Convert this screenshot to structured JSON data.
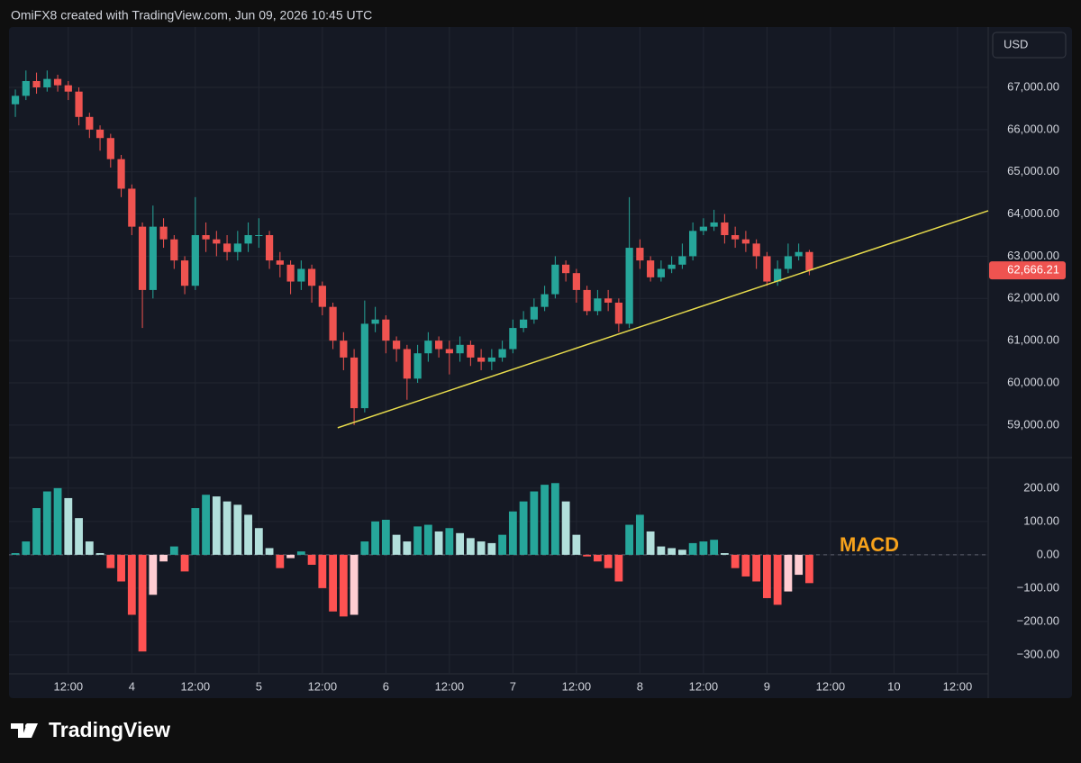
{
  "header": {
    "credit": "OmiFX8 created with TradingView.com, Jun 09, 2026 10:45 UTC",
    "currency": "USD",
    "brand": "TradingView"
  },
  "chart_data": [
    {
      "type": "candlestick",
      "x": [
        2,
        4,
        6,
        8,
        10,
        12,
        14,
        16,
        18,
        20,
        22,
        24,
        26,
        28,
        30,
        32,
        34,
        36,
        38,
        40,
        42,
        44,
        46,
        48,
        50,
        52,
        54,
        56,
        58,
        60,
        62,
        64,
        66,
        68,
        70,
        72,
        74,
        76,
        78,
        80,
        82,
        84,
        86,
        88,
        90,
        92,
        94,
        96,
        98,
        100,
        102,
        104,
        106,
        108,
        110,
        112,
        114,
        116,
        118,
        120,
        122,
        124,
        126,
        128,
        130,
        132,
        134,
        136,
        138,
        140,
        142,
        144,
        146,
        148,
        150,
        152
      ],
      "open": [
        66600,
        66800,
        67150,
        67000,
        67200,
        67050,
        66900,
        66300,
        66000,
        65800,
        65300,
        64600,
        63700,
        62200,
        63700,
        63400,
        62900,
        62300,
        63500,
        63400,
        63300,
        63100,
        63300,
        63500,
        63500,
        62900,
        62800,
        62400,
        62700,
        62300,
        61800,
        61000,
        60600,
        59400,
        61400,
        61500,
        61000,
        60800,
        60100,
        60700,
        61000,
        60800,
        60700,
        60900,
        60600,
        60500,
        60600,
        60800,
        61300,
        61500,
        61800,
        62100,
        62800,
        62600,
        62200,
        61700,
        62000,
        61900,
        61400,
        63200,
        62900,
        62500,
        62700,
        62800,
        63000,
        63600,
        63700,
        63800,
        63500,
        63400,
        63300,
        63000,
        62400,
        62700,
        63000,
        63100
      ],
      "high": [
        66950,
        67400,
        67350,
        67400,
        67300,
        67150,
        67000,
        66400,
        66100,
        65900,
        65400,
        64700,
        63800,
        64200,
        63900,
        63500,
        63000,
        64400,
        63800,
        63600,
        63500,
        63600,
        63800,
        63900,
        63600,
        63100,
        62900,
        62900,
        62800,
        62400,
        61900,
        61200,
        60800,
        61950,
        61800,
        61600,
        61100,
        60900,
        60900,
        61200,
        61100,
        61000,
        61100,
        61000,
        60800,
        60800,
        61000,
        61500,
        61700,
        62000,
        62300,
        63000,
        62900,
        62700,
        62300,
        62200,
        62200,
        62000,
        64400,
        63400,
        63000,
        62900,
        63000,
        63300,
        63800,
        63900,
        64100,
        64000,
        63700,
        63600,
        63400,
        63100,
        62900,
        63300,
        63300,
        63150
      ],
      "low": [
        66300,
        66700,
        66850,
        66900,
        66900,
        66700,
        66100,
        65800,
        65500,
        65100,
        64400,
        63500,
        61300,
        62000,
        63200,
        62700,
        62100,
        62200,
        63100,
        63000,
        62900,
        62900,
        63100,
        63200,
        62700,
        62500,
        62100,
        62200,
        61900,
        61600,
        60800,
        60300,
        59000,
        59300,
        61200,
        60700,
        60500,
        59600,
        60000,
        60500,
        60600,
        60200,
        60500,
        60400,
        60300,
        60300,
        60500,
        60700,
        61200,
        61400,
        61700,
        62000,
        62400,
        61900,
        61600,
        61600,
        61700,
        61200,
        61300,
        62700,
        62400,
        62400,
        62600,
        62700,
        62900,
        63500,
        63600,
        63300,
        63200,
        63100,
        62700,
        62300,
        62300,
        62600,
        62900,
        62550
      ],
      "close": [
        66800,
        67150,
        67000,
        67200,
        67050,
        66900,
        66300,
        66000,
        65800,
        65300,
        64600,
        63700,
        62200,
        63700,
        63400,
        62900,
        62300,
        63500,
        63400,
        63300,
        63100,
        63300,
        63500,
        63500,
        62900,
        62800,
        62400,
        62700,
        62300,
        61800,
        61000,
        60600,
        59400,
        61400,
        61500,
        61000,
        60800,
        60100,
        60700,
        61000,
        60800,
        60700,
        60900,
        60600,
        60500,
        60600,
        60800,
        61300,
        61500,
        61800,
        62100,
        62800,
        62600,
        62200,
        61700,
        62000,
        61900,
        61400,
        63200,
        62900,
        62500,
        62700,
        62800,
        63000,
        63600,
        63700,
        63800,
        63500,
        63400,
        63300,
        63000,
        62400,
        62700,
        63000,
        63100,
        62666.21
      ],
      "up_color": "#26a69a",
      "down_color": "#ef5350",
      "xlim": [
        0.8,
        185.8
      ],
      "ylim": [
        58250,
        68430
      ],
      "yticks": [
        {
          "value": 59000,
          "label": "59,000.00"
        },
        {
          "value": 60000,
          "label": "60,000.00"
        },
        {
          "value": 61000,
          "label": "61,000.00"
        },
        {
          "value": 62000,
          "label": "62,000.00"
        },
        {
          "value": 63000,
          "label": "63,000.00"
        },
        {
          "value": 64000,
          "label": "64,000.00"
        },
        {
          "value": 65000,
          "label": "65,000.00"
        },
        {
          "value": 66000,
          "label": "66,000.00"
        },
        {
          "value": 67000,
          "label": "67,000.00"
        }
      ],
      "last_price": {
        "value": 62666.21,
        "label": "62,666.21"
      },
      "trendline": {
        "x": [
          62.9,
          185.8
        ],
        "y": [
          58936,
          64077
        ],
        "color": "#e8dc4c"
      },
      "grid": true
    },
    {
      "type": "histogram",
      "title": "MACD",
      "title_color": "#f7a21b",
      "x": [
        2,
        4,
        6,
        8,
        10,
        12,
        14,
        16,
        18,
        20,
        22,
        24,
        26,
        28,
        30,
        32,
        34,
        36,
        38,
        40,
        42,
        44,
        46,
        48,
        50,
        52,
        54,
        56,
        58,
        60,
        62,
        64,
        66,
        68,
        70,
        72,
        74,
        76,
        78,
        80,
        82,
        84,
        86,
        88,
        90,
        92,
        94,
        96,
        98,
        100,
        102,
        104,
        106,
        108,
        110,
        112,
        114,
        116,
        118,
        120,
        122,
        124,
        126,
        128,
        130,
        132,
        134,
        136,
        138,
        140,
        142,
        144,
        146,
        148,
        150,
        152
      ],
      "values": [
        5,
        40,
        140,
        190,
        200,
        170,
        110,
        40,
        5,
        -40,
        -80,
        -180,
        -290,
        -120,
        -20,
        25,
        -50,
        140,
        180,
        175,
        160,
        150,
        120,
        80,
        20,
        -40,
        -10,
        10,
        -30,
        -100,
        -170,
        -185,
        -180,
        40,
        100,
        105,
        60,
        40,
        85,
        90,
        70,
        80,
        65,
        50,
        40,
        35,
        60,
        130,
        160,
        190,
        210,
        215,
        160,
        60,
        -5,
        -20,
        -40,
        -80,
        90,
        120,
        70,
        25,
        20,
        15,
        35,
        40,
        45,
        5,
        -40,
        -65,
        -80,
        -130,
        -150,
        -110,
        -60,
        -85
      ],
      "colors": [
        "#26a69a",
        "#b2dfdb",
        "#ff5252",
        "#ffcdd2"
      ],
      "xlim": [
        0.8,
        185.8
      ],
      "ylim": [
        -357,
        286
      ],
      "yticks": [
        {
          "value": -300,
          "label": "−300.00"
        },
        {
          "value": -200,
          "label": "−200.00"
        },
        {
          "value": -100,
          "label": "−100.00"
        },
        {
          "value": 0,
          "label": "0.00"
        },
        {
          "value": 100,
          "label": "100.00"
        },
        {
          "value": 200,
          "label": "200.00"
        }
      ],
      "xticks": [
        {
          "value": 12,
          "label": "12:00"
        },
        {
          "value": 24,
          "label": "4"
        },
        {
          "value": 36,
          "label": "12:00"
        },
        {
          "value": 48,
          "label": "5"
        },
        {
          "value": 60,
          "label": "12:00"
        },
        {
          "value": 72,
          "label": "6"
        },
        {
          "value": 84,
          "label": "12:00"
        },
        {
          "value": 96,
          "label": "7"
        },
        {
          "value": 108,
          "label": "12:00"
        },
        {
          "value": 120,
          "label": "8"
        },
        {
          "value": 132,
          "label": "12:00"
        },
        {
          "value": 144,
          "label": "9"
        },
        {
          "value": 156,
          "label": "12:00"
        },
        {
          "value": 168,
          "label": "10"
        },
        {
          "value": 180,
          "label": "12:00"
        }
      ],
      "grid": true
    }
  ]
}
